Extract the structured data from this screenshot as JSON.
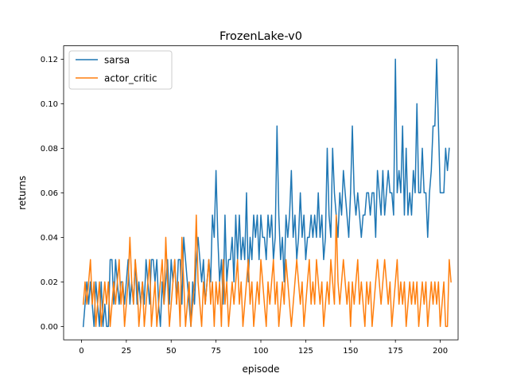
{
  "chart_data": {
    "type": "line",
    "title": "FrozenLake-v0",
    "xlabel": "episode",
    "ylabel": "returns",
    "xlim": [
      -9.95,
      209.95
    ],
    "ylim": [
      -0.006,
      0.126
    ],
    "grid": false,
    "legend_position": "top-left",
    "x_ticks": [
      0,
      25,
      50,
      75,
      100,
      125,
      150,
      175,
      200
    ],
    "x_tick_labels": [
      "0",
      "25",
      "50",
      "75",
      "100",
      "125",
      "150",
      "175",
      "200"
    ],
    "y_ticks": [
      0,
      0.02,
      0.04,
      0.06,
      0.08,
      0.1,
      0.12
    ],
    "y_tick_labels": [
      "0.00",
      "0.02",
      "0.04",
      "0.06",
      "0.08",
      "0.10",
      "0.12"
    ],
    "series": [
      {
        "name": "sarsa",
        "color": "#1f77b4",
        "values": [
          0.0,
          0.01,
          0.02,
          0.01,
          0.02,
          0.01,
          0.0,
          0.02,
          0.01,
          0.0,
          0.02,
          0.0,
          0.01,
          0.0,
          0.0,
          0.03,
          0.03,
          0.01,
          0.03,
          0.02,
          0.01,
          0.02,
          0.02,
          0.01,
          0.02,
          0.03,
          0.01,
          0.02,
          0.01,
          0.03,
          0.01,
          0.02,
          0.01,
          0.02,
          0.01,
          0.03,
          0.02,
          0.01,
          0.03,
          0.03,
          0.02,
          0.03,
          0.01,
          0.0,
          0.02,
          0.01,
          0.02,
          0.03,
          0.01,
          0.03,
          0.02,
          0.03,
          0.01,
          0.03,
          0.03,
          0.01,
          0.04,
          0.03,
          0.02,
          0.01,
          0.0,
          0.02,
          0.01,
          0.03,
          0.04,
          0.03,
          0.02,
          0.03,
          0.01,
          0.02,
          0.03,
          0.02,
          0.05,
          0.04,
          0.07,
          0.04,
          0.02,
          0.03,
          0.01,
          0.05,
          0.02,
          0.03,
          0.03,
          0.04,
          0.02,
          0.05,
          0.03,
          0.05,
          0.03,
          0.04,
          0.03,
          0.06,
          0.02,
          0.04,
          0.03,
          0.05,
          0.04,
          0.05,
          0.03,
          0.05,
          0.04,
          0.04,
          0.03,
          0.05,
          0.04,
          0.05,
          0.03,
          0.04,
          0.09,
          0.05,
          0.03,
          0.04,
          0.02,
          0.05,
          0.04,
          0.05,
          0.07,
          0.04,
          0.05,
          0.03,
          0.04,
          0.06,
          0.04,
          0.05,
          0.03,
          0.04,
          0.04,
          0.05,
          0.04,
          0.05,
          0.04,
          0.06,
          0.04,
          0.05,
          0.03,
          0.04,
          0.08,
          0.05,
          0.04,
          0.08,
          0.06,
          0.05,
          0.04,
          0.06,
          0.05,
          0.07,
          0.06,
          0.05,
          0.04,
          0.06,
          0.09,
          0.06,
          0.05,
          0.06,
          0.05,
          0.04,
          0.05,
          0.05,
          0.06,
          0.06,
          0.05,
          0.06,
          0.06,
          0.04,
          0.07,
          0.06,
          0.05,
          0.07,
          0.05,
          0.06,
          0.07,
          0.06,
          0.06,
          0.05,
          0.12,
          0.06,
          0.07,
          0.06,
          0.09,
          0.05,
          0.08,
          0.05,
          0.06,
          0.05,
          0.07,
          0.06,
          0.1,
          0.06,
          0.06,
          0.08,
          0.06,
          0.06,
          0.04,
          0.06,
          0.07,
          0.09,
          0.09,
          0.12,
          0.09,
          0.06,
          0.06,
          0.06,
          0.08,
          0.07,
          0.08
        ]
      },
      {
        "name": "actor_critic",
        "color": "#ff7f0e",
        "values": [
          0.01,
          0.02,
          0.01,
          0.02,
          0.03,
          0.01,
          0.02,
          0.0,
          0.01,
          0.02,
          0.0,
          0.01,
          0.02,
          0.01,
          0.02,
          0.0,
          0.01,
          0.02,
          0.01,
          0.02,
          0.03,
          0.01,
          0.02,
          0.0,
          0.01,
          0.02,
          0.04,
          0.02,
          0.01,
          0.03,
          0.02,
          0.0,
          0.01,
          0.02,
          0.0,
          0.01,
          0.02,
          0.03,
          0.0,
          0.01,
          0.02,
          0.0,
          0.01,
          0.02,
          0.03,
          0.01,
          0.04,
          0.02,
          0.0,
          0.01,
          0.02,
          0.03,
          0.01,
          0.02,
          0.0,
          0.04,
          0.02,
          0.0,
          0.01,
          0.02,
          0.0,
          0.01,
          0.02,
          0.05,
          0.02,
          0.01,
          0.0,
          0.02,
          0.01,
          0.02,
          0.03,
          0.01,
          0.02,
          0.0,
          0.02,
          0.01,
          0.02,
          0.0,
          0.03,
          0.01,
          0.02,
          0.0,
          0.01,
          0.02,
          0.01,
          0.02,
          0.03,
          0.01,
          0.02,
          0.0,
          0.01,
          0.02,
          0.03,
          0.01,
          0.02,
          0.0,
          0.01,
          0.02,
          0.01,
          0.03,
          0.02,
          0.01,
          0.0,
          0.02,
          0.01,
          0.02,
          0.03,
          0.01,
          0.02,
          0.0,
          0.01,
          0.02,
          0.01,
          0.03,
          0.02,
          0.01,
          0.0,
          0.01,
          0.02,
          0.03,
          0.02,
          0.01,
          0.02,
          0.0,
          0.01,
          0.02,
          0.03,
          0.01,
          0.02,
          0.01,
          0.03,
          0.02,
          0.01,
          0.02,
          0.0,
          0.01,
          0.02,
          0.01,
          0.03,
          0.02,
          0.01,
          0.05,
          0.02,
          0.01,
          0.02,
          0.03,
          0.02,
          0.01,
          0.02,
          0.0,
          0.02,
          0.01,
          0.02,
          0.03,
          0.01,
          0.02,
          0.01,
          0.0,
          0.02,
          0.01,
          0.02,
          0.0,
          0.01,
          0.02,
          0.03,
          0.02,
          0.01,
          0.02,
          0.03,
          0.02,
          0.01,
          0.02,
          0.0,
          0.01,
          0.02,
          0.03,
          0.01,
          0.02,
          0.01,
          0.02,
          0.0,
          0.01,
          0.02,
          0.01,
          0.02,
          0.01,
          0.02,
          0.0,
          0.01,
          0.02,
          0.01,
          0.02,
          0.0,
          0.01,
          0.02,
          0.01,
          0.02,
          0.01,
          0.02,
          0.0,
          0.01,
          0.02,
          0.0,
          0.0,
          0.03,
          0.02
        ]
      }
    ]
  }
}
